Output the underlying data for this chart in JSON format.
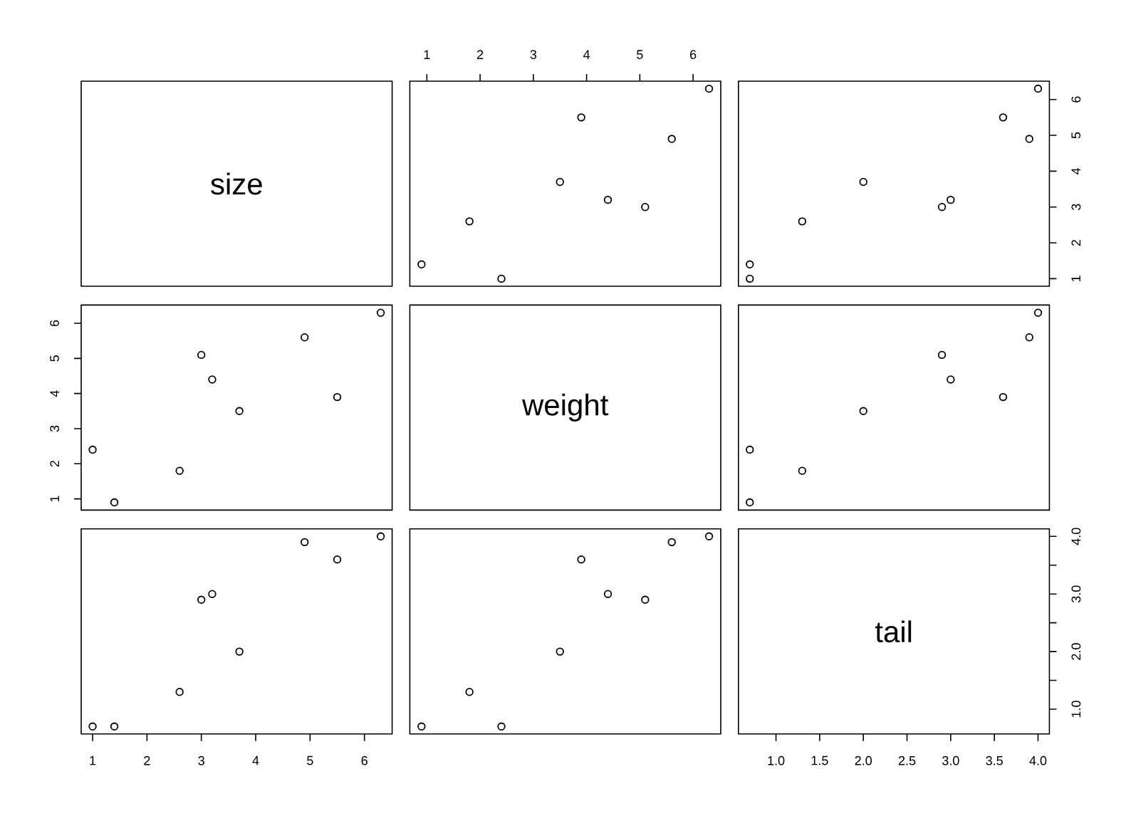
{
  "chart_data": [
    {
      "type": "other",
      "annotations": [
        "size"
      ]
    },
    {
      "type": "scatter",
      "x": [
        2.4,
        0.9,
        1.8,
        5.1,
        4.4,
        3.5,
        5.6,
        3.9,
        6.3
      ],
      "values": [
        1.0,
        1.4,
        2.6,
        3.0,
        3.2,
        3.7,
        4.9,
        5.5,
        6.3
      ],
      "xlim": [
        0.68,
        6.52
      ],
      "ylim": [
        0.79,
        6.51
      ],
      "xticks": [
        1,
        2,
        3,
        4,
        5,
        6
      ],
      "tick_labels": "x",
      "marker": "circle",
      "color": "#000000"
    },
    {
      "type": "scatter",
      "x": [
        0.7,
        0.7,
        1.3,
        2.9,
        3.0,
        2.0,
        3.9,
        3.6,
        4.0
      ],
      "values": [
        1.0,
        1.4,
        2.6,
        3.0,
        3.2,
        3.7,
        4.9,
        5.5,
        6.3
      ],
      "xlim": [
        0.57,
        4.13
      ],
      "ylim": [
        0.79,
        6.51
      ],
      "yticks": [
        1,
        2,
        3,
        4,
        5,
        6
      ],
      "tick_labels": "y",
      "marker": "circle",
      "color": "#000000"
    },
    {
      "type": "scatter",
      "x": [
        1.0,
        1.4,
        2.6,
        3.0,
        3.2,
        3.7,
        4.9,
        5.5,
        6.3
      ],
      "values": [
        2.4,
        0.9,
        1.8,
        5.1,
        4.4,
        3.5,
        5.6,
        3.9,
        6.3
      ],
      "xlim": [
        0.79,
        6.51
      ],
      "ylim": [
        0.68,
        6.52
      ],
      "yticks": [
        1,
        2,
        3,
        4,
        5,
        6
      ],
      "tick_labels": "y",
      "marker": "circle",
      "color": "#000000"
    },
    {
      "type": "other",
      "annotations": [
        "weight"
      ]
    },
    {
      "type": "scatter",
      "x": [
        0.7,
        0.7,
        1.3,
        2.9,
        3.0,
        2.0,
        3.9,
        3.6,
        4.0
      ],
      "values": [
        2.4,
        0.9,
        1.8,
        5.1,
        4.4,
        3.5,
        5.6,
        3.9,
        6.3
      ],
      "xlim": [
        0.57,
        4.13
      ],
      "ylim": [
        0.68,
        6.52
      ],
      "tick_labels": false,
      "marker": "circle",
      "color": "#000000"
    },
    {
      "type": "scatter",
      "x": [
        1.0,
        1.4,
        2.6,
        3.0,
        3.2,
        3.7,
        4.9,
        5.5,
        6.3
      ],
      "values": [
        0.7,
        0.7,
        1.3,
        2.9,
        3.0,
        2.0,
        3.9,
        3.6,
        4.0
      ],
      "xlim": [
        0.79,
        6.51
      ],
      "ylim": [
        0.57,
        4.13
      ],
      "xticks": [
        1,
        2,
        3,
        4,
        5,
        6
      ],
      "tick_labels": "x",
      "marker": "circle",
      "color": "#000000"
    },
    {
      "type": "scatter",
      "x": [
        2.4,
        0.9,
        1.8,
        5.1,
        4.4,
        3.5,
        5.6,
        3.9,
        6.3
      ],
      "values": [
        0.7,
        0.7,
        1.3,
        2.9,
        3.0,
        2.0,
        3.9,
        3.6,
        4.0
      ],
      "xlim": [
        0.68,
        6.52
      ],
      "ylim": [
        0.57,
        4.13
      ],
      "tick_labels": false,
      "marker": "circle",
      "color": "#000000"
    },
    {
      "type": "scatter",
      "annotations": [
        "tail"
      ],
      "xlim": [
        0.57,
        4.13
      ],
      "ylim": [
        0.57,
        4.13
      ],
      "xticks": [
        {
          "value": 1.0,
          "label": "1.0"
        },
        {
          "value": 1.5,
          "label": "1.5"
        },
        {
          "value": 2.0,
          "label": "2.0"
        },
        {
          "value": 2.5,
          "label": "2.5"
        },
        {
          "value": 3.0,
          "label": "3.0"
        },
        {
          "value": 3.5,
          "label": "3.5"
        },
        {
          "value": 4.0,
          "label": "4.0"
        }
      ],
      "yticks": [
        {
          "value": 1.0,
          "label": "1.0"
        },
        {
          "value": 1.5,
          "label": null
        },
        {
          "value": 2.0,
          "label": "2.0"
        },
        {
          "value": 2.5,
          "label": null
        },
        {
          "value": 3.0,
          "label": "3.0"
        },
        {
          "value": 3.5,
          "label": null
        },
        {
          "value": 4.0,
          "label": "4.0"
        }
      ]
    }
  ]
}
